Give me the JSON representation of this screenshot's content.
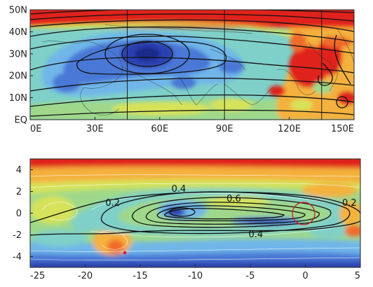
{
  "chart_data": [
    {
      "type": "heatmap",
      "title": "",
      "xlabel": "",
      "ylabel": "",
      "x_tick_labels": [
        "0E",
        "30E",
        "60E",
        "90E",
        "120E",
        "150E"
      ],
      "x_tick_values": [
        0,
        30,
        60,
        90,
        120,
        150
      ],
      "y_tick_labels": [
        "EQ",
        "10N",
        "20N",
        "30N",
        "40N",
        "50N"
      ],
      "y_tick_values": [
        0,
        10,
        20,
        30,
        40,
        50
      ],
      "xlim": [
        0,
        150
      ],
      "ylim": [
        0,
        50
      ],
      "reference_meridians": [
        45,
        90,
        135
      ],
      "features": [
        {
          "name": "anticyclone core",
          "lon": 50,
          "lat": 30,
          "level": "minimum"
        },
        {
          "name": "eastern high band",
          "lon_range": [
            100,
            150
          ],
          "lat_range": [
            10,
            40
          ],
          "level": "maximum"
        }
      ],
      "fill_colors": [
        "#2b3fb0",
        "#4a78d6",
        "#6fb6e8",
        "#7fd0c8",
        "#9fd88a",
        "#d6e35a",
        "#f4b13c",
        "#f06a2a",
        "#e0231c"
      ],
      "contour_color": "#111111"
    },
    {
      "type": "heatmap",
      "title": "",
      "xlabel": "",
      "ylabel": "",
      "x_tick_labels": [
        "-25",
        "-20",
        "-15",
        "-10",
        "-5",
        "0",
        "5"
      ],
      "x_tick_values": [
        -25,
        -20,
        -15,
        -10,
        -5,
        0,
        5
      ],
      "y_tick_labels": [
        "4",
        "2",
        "0",
        "-2",
        "-4"
      ],
      "y_tick_values": [
        4,
        2,
        0,
        -2,
        -4
      ],
      "xlim": [
        -25,
        5
      ],
      "ylim": [
        -5,
        5
      ],
      "contour_levels": [
        0.2,
        0.4,
        0.6
      ],
      "contour_labels": [
        {
          "text": "0.4",
          "x": -11.5,
          "y": 2.1
        },
        {
          "text": "0.2",
          "x": -17.5,
          "y": 0.8
        },
        {
          "text": "0.6",
          "x": -6.5,
          "y": 1.2
        },
        {
          "text": "0.2",
          "x": 4.0,
          "y": 0.8
        },
        {
          "text": "0.4",
          "x": -4.5,
          "y": -2.1
        }
      ],
      "features": [
        {
          "name": "central maximum",
          "x": -11,
          "y": 0,
          "level": "maximum"
        }
      ],
      "fill_colors": [
        "#2b3fb0",
        "#4a78d6",
        "#6fb6e8",
        "#7fd0c8",
        "#9fd88a",
        "#d6e35a",
        "#f4b13c",
        "#f06a2a",
        "#e0231c"
      ],
      "contour_color": "#111111",
      "marker_color": "#d01818"
    }
  ]
}
